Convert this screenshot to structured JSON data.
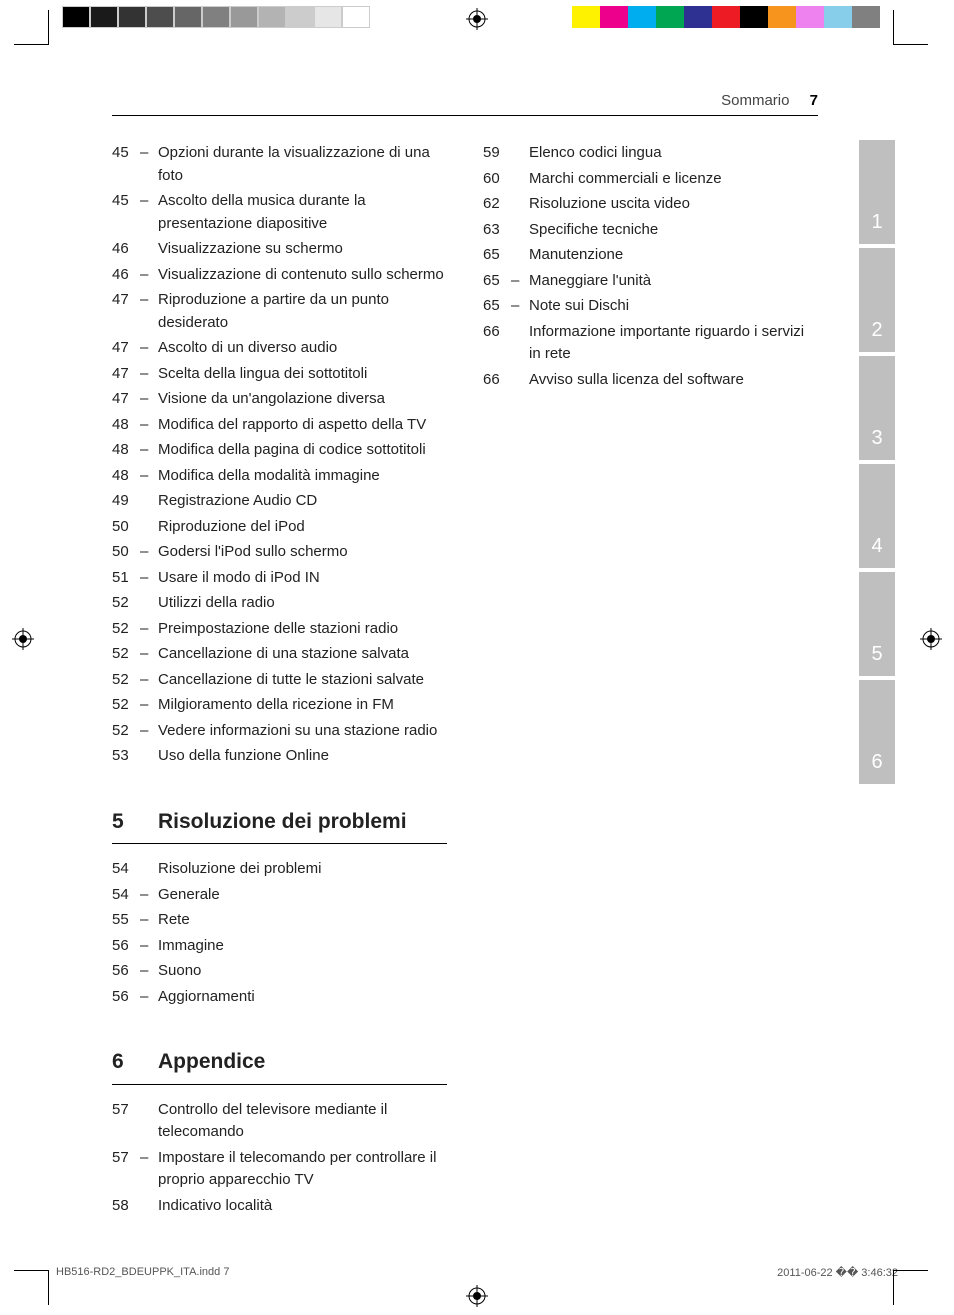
{
  "header": {
    "label": "Sommario",
    "page": "7"
  },
  "grayBar": [
    "#000000",
    "#1a1a1a",
    "#333333",
    "#4d4d4d",
    "#666666",
    "#808080",
    "#999999",
    "#b3b3b3",
    "#cccccc",
    "#e6e6e6",
    "#ffffff"
  ],
  "colorBar": [
    "#fff200",
    "#ec008c",
    "#00aeef",
    "#00a651",
    "#2e3192",
    "#ed1c24",
    "#000000",
    "#f7941d",
    "#ee82ee",
    "#87ceeb",
    "#808080"
  ],
  "col1": [
    {
      "p": "45",
      "sub": true,
      "t": "Opzioni durante la visualizzazione di una foto"
    },
    {
      "p": "45",
      "sub": true,
      "t": "Ascolto della musica durante la presentazione diapositive"
    },
    {
      "p": "46",
      "sub": false,
      "t": "Visualizzazione su schermo"
    },
    {
      "p": "46",
      "sub": true,
      "t": "Visualizzazione di contenuto sullo schermo"
    },
    {
      "p": "47",
      "sub": true,
      "t": "Riproduzione a partire da un punto desiderato"
    },
    {
      "p": "47",
      "sub": true,
      "t": "Ascolto di un diverso audio"
    },
    {
      "p": "47",
      "sub": true,
      "t": "Scelta della lingua dei sottotitoli"
    },
    {
      "p": "47",
      "sub": true,
      "t": "Visione da un'angolazione diversa"
    },
    {
      "p": "48",
      "sub": true,
      "t": "Modifica del rapporto di aspetto della TV"
    },
    {
      "p": "48",
      "sub": true,
      "t": "Modifica della pagina di codice sottotitoli"
    },
    {
      "p": "48",
      "sub": true,
      "t": "Modifica della modalità immagine"
    },
    {
      "p": "49",
      "sub": false,
      "t": "Registrazione Audio CD"
    },
    {
      "p": "50",
      "sub": false,
      "t": "Riproduzione del iPod"
    },
    {
      "p": "50",
      "sub": true,
      "t": "Godersi l'iPod sullo schermo"
    },
    {
      "p": "51",
      "sub": true,
      "t": "Usare il modo di iPod IN"
    },
    {
      "p": "52",
      "sub": false,
      "t": "Utilizzi della radio"
    },
    {
      "p": "52",
      "sub": true,
      "t": "Preimpostazione delle stazioni radio"
    },
    {
      "p": "52",
      "sub": true,
      "t": "Cancellazione di una stazione salvata"
    },
    {
      "p": "52",
      "sub": true,
      "t": "Cancellazione di tutte le stazioni salvate"
    },
    {
      "p": "52",
      "sub": true,
      "t": "Milgioramento della ricezione in FM"
    },
    {
      "p": "52",
      "sub": true,
      "t": "Vedere informazioni su una stazione radio"
    },
    {
      "p": "53",
      "sub": false,
      "t": "Uso della funzione Online"
    }
  ],
  "col2": [
    {
      "p": "59",
      "sub": false,
      "t": "Elenco codici lingua"
    },
    {
      "p": "60",
      "sub": false,
      "t": "Marchi commerciali e licenze"
    },
    {
      "p": "62",
      "sub": false,
      "t": "Risoluzione uscita video"
    },
    {
      "p": "63",
      "sub": false,
      "t": "Specifiche tecniche"
    },
    {
      "p": "65",
      "sub": false,
      "t": "Manutenzione"
    },
    {
      "p": "65",
      "sub": true,
      "t": "Maneggiare l'unità"
    },
    {
      "p": "65",
      "sub": true,
      "t": "Note sui Dischi"
    },
    {
      "p": "66",
      "sub": false,
      "t": "Informazione importante riguardo i servizi in rete"
    },
    {
      "p": "66",
      "sub": false,
      "t": "Avviso sulla licenza del software"
    }
  ],
  "section5": {
    "num": "5",
    "title": "Risoluzione dei problemi",
    "items": [
      {
        "p": "54",
        "sub": false,
        "t": "Risoluzione dei problemi"
      },
      {
        "p": "54",
        "sub": true,
        "t": "Generale"
      },
      {
        "p": "55",
        "sub": true,
        "t": "Rete"
      },
      {
        "p": "56",
        "sub": true,
        "t": "Immagine"
      },
      {
        "p": "56",
        "sub": true,
        "t": "Suono"
      },
      {
        "p": "56",
        "sub": true,
        "t": "Aggiornamenti"
      }
    ]
  },
  "section6": {
    "num": "6",
    "title": "Appendice",
    "items": [
      {
        "p": "57",
        "sub": false,
        "t": "Controllo del televisore mediante il telecomando"
      },
      {
        "p": "57",
        "sub": true,
        "t": "Impostare il telecomando per controllare il proprio apparecchio TV"
      },
      {
        "p": "58",
        "sub": false,
        "t": "Indicativo località"
      }
    ]
  },
  "tabs": [
    "1",
    "2",
    "3",
    "4",
    "5",
    "6"
  ],
  "footer": {
    "left": "HB516-RD2_BDEUPPK_ITA.indd   7",
    "right": "2011-06-22   �� 3:46:32"
  }
}
